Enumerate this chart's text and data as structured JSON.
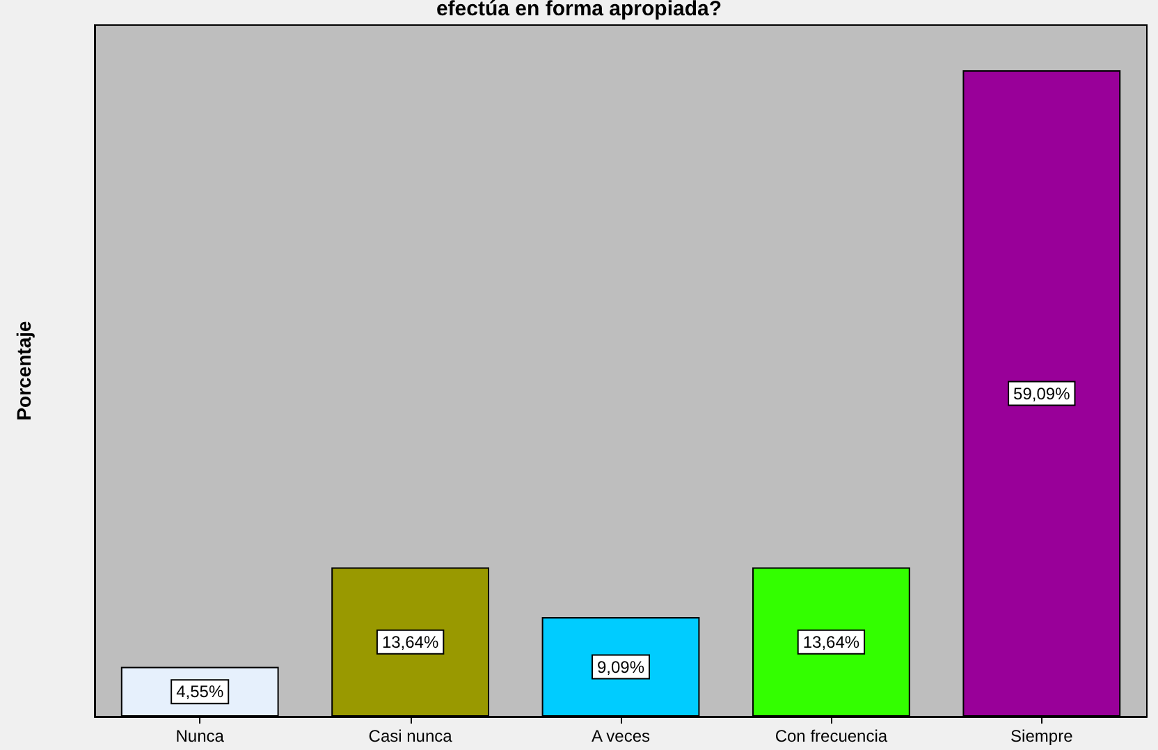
{
  "chart_data": {
    "type": "bar",
    "title": "efectúa en forma apropiada?",
    "ylabel": "Porcentaje",
    "categories": [
      "Nunca",
      "Casi nunca",
      "A veces",
      "Con frecuencia",
      "Siempre"
    ],
    "values": [
      4.55,
      13.64,
      9.09,
      13.64,
      59.09
    ],
    "colors": [
      "#e6f0fc",
      "#999900",
      "#00ccff",
      "#33ff00",
      "#990099"
    ],
    "value_labels": [
      "4,55%",
      "13,64%",
      "9,09%",
      "13,64%",
      "59,09%"
    ],
    "grid": false
  }
}
